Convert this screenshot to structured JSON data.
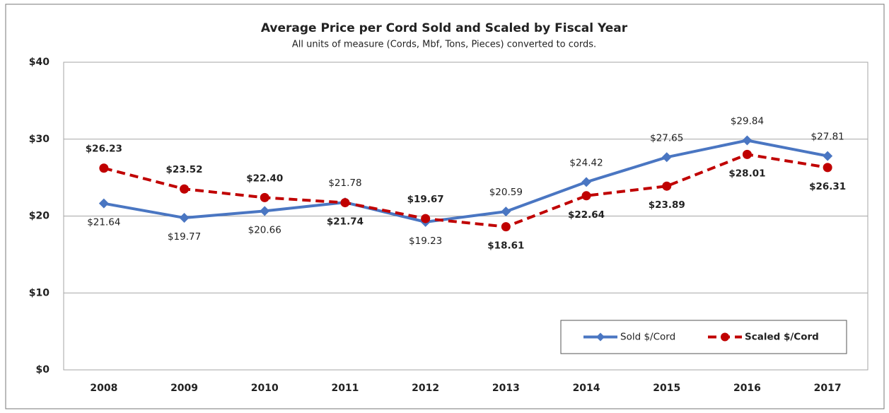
{
  "chart_data": {
    "type": "line",
    "title": "Average Price per Cord Sold and Scaled by Fiscal Year",
    "subtitle": "All units of measure (Cords, Mbf, Tons, Pieces) converted to cords.",
    "categories": [
      "2008",
      "2009",
      "2010",
      "2011",
      "2012",
      "2013",
      "2014",
      "2015",
      "2016",
      "2017"
    ],
    "series": [
      {
        "name": "Sold $/Cord",
        "color": "#4a76c2",
        "marker": "diamond",
        "dashed": false,
        "values": [
          21.64,
          19.77,
          20.66,
          21.78,
          19.23,
          20.59,
          24.42,
          27.65,
          29.84,
          27.81
        ],
        "value_labels": [
          "$21.64",
          "$19.77",
          "$20.66",
          "$21.78",
          "$19.23",
          "$20.59",
          "$24.42",
          "$27.65",
          "$29.84",
          "$27.81"
        ]
      },
      {
        "name": "Scaled $/Cord",
        "color": "#c00000",
        "marker": "circle",
        "dashed": true,
        "values": [
          26.23,
          23.52,
          22.4,
          21.74,
          19.67,
          18.61,
          22.64,
          23.89,
          28.01,
          26.31
        ],
        "value_labels": [
          "$26.23",
          "$23.52",
          "$22.40",
          "$21.74",
          "$19.67",
          "$18.61",
          "$22.64",
          "$23.89",
          "$28.01",
          "$26.31"
        ]
      }
    ],
    "ylim": [
      0,
      40
    ],
    "yticks": [
      {
        "value": 0,
        "label": "$0"
      },
      {
        "value": 10,
        "label": "$10"
      },
      {
        "value": 20,
        "label": "$20"
      },
      {
        "value": 30,
        "label": "$30"
      },
      {
        "value": 40,
        "label": "$40"
      }
    ],
    "grid": true,
    "legend": "lower right"
  }
}
